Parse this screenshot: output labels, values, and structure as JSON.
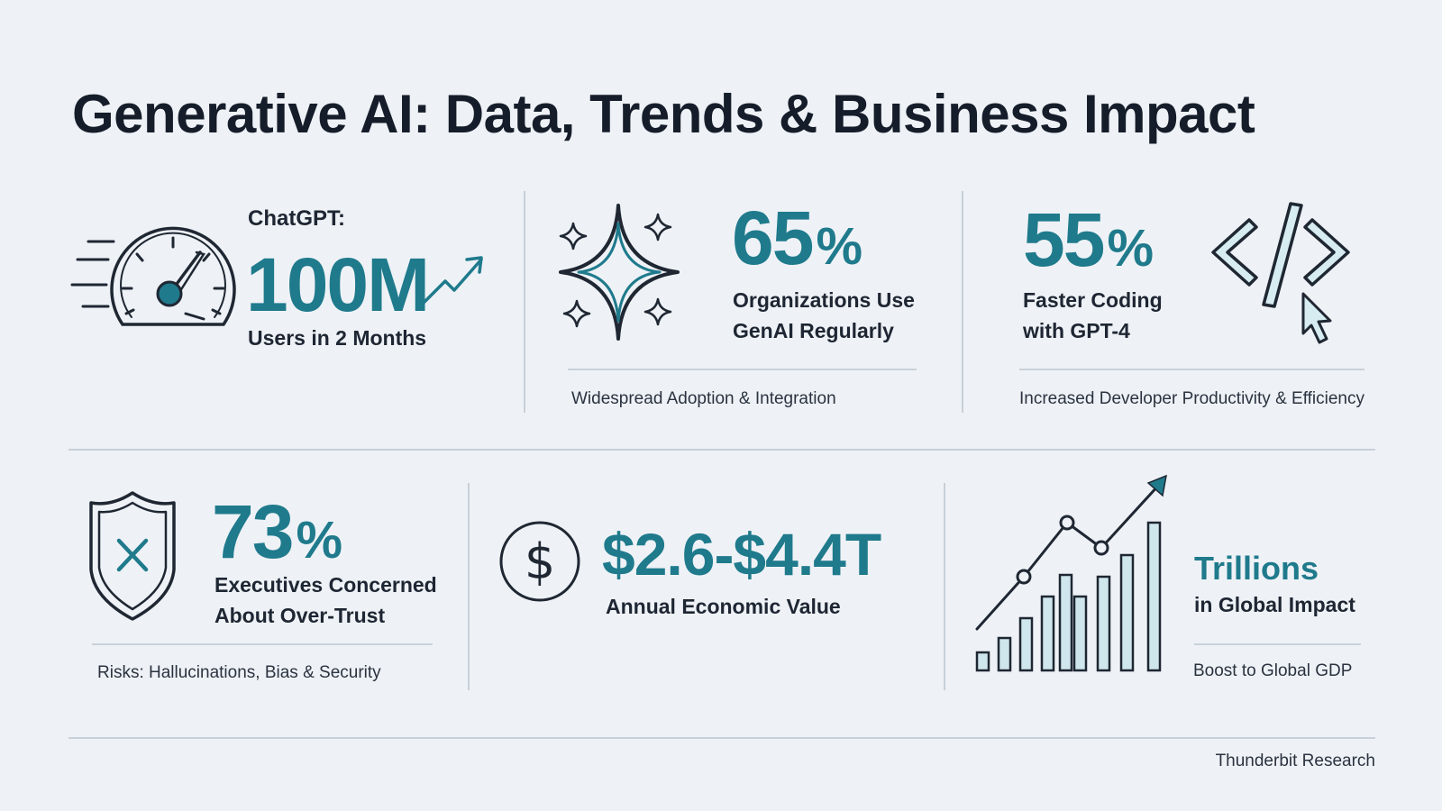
{
  "title": "Generative AI: Data, Trends & Business Impact",
  "cards": {
    "chatgpt": {
      "prefix": "ChatGPT:",
      "value": "100M",
      "label": "Users in 2 Months",
      "icon": "speedometer-icon"
    },
    "adoption": {
      "value": "65",
      "unit": "%",
      "label_line1": "Organizations Use",
      "label_line2": "GenAI Regularly",
      "footer": "Widespread Adoption & Integration",
      "icon": "sparkle-icon"
    },
    "coding": {
      "value": "55",
      "unit": "%",
      "label_line1": "Faster Coding",
      "label_line2": "with GPT-4",
      "footer": "Increased Developer Productivity & Efficiency",
      "icon": "code-icon"
    },
    "trust": {
      "value": "73",
      "unit": "%",
      "label_line1": "Executives Concerned",
      "label_line2": "About Over-Trust",
      "footer": "Risks: Hallucinations, Bias & Security",
      "icon": "shield-x-icon"
    },
    "economic": {
      "value": "$2.6-$4.4T",
      "label": "Annual Economic Value",
      "icon": "dollar-icon"
    },
    "global": {
      "value": "Trillions",
      "label": "in Global Impact",
      "footer": "Boost to Global GDP",
      "icon": "growth-chart-icon"
    }
  },
  "source": "Thunderbit Research",
  "colors": {
    "accent": "#1f7a8c",
    "text": "#1a2230",
    "background": "#eef2f6",
    "bar_fill": "#cfe6ec"
  }
}
